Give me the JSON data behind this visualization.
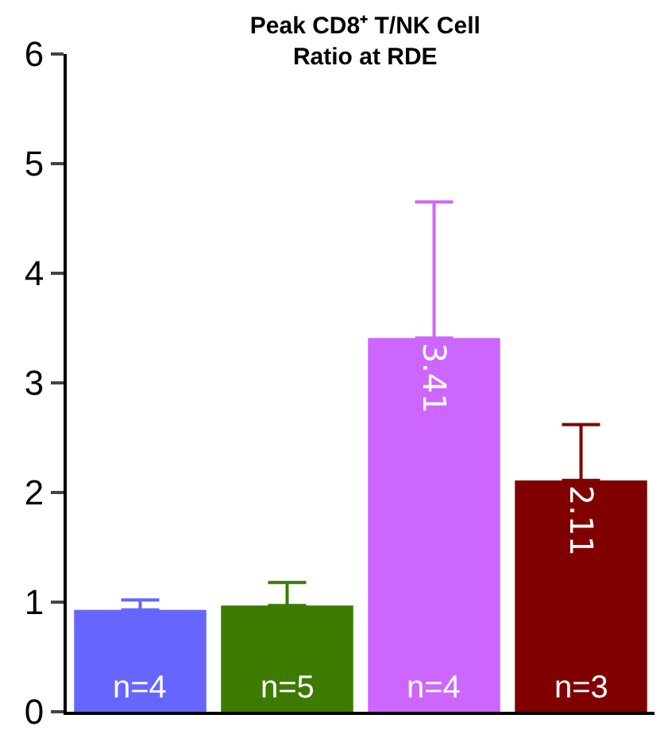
{
  "chart_data": {
    "type": "bar",
    "title": "Peak CD8⁺ T/NK Cell\nRatio at RDE",
    "categories": [
      null,
      null,
      null,
      null
    ],
    "values": [
      0.93,
      0.97,
      3.41,
      2.11
    ],
    "colors": [
      "#6666ff",
      "#3d7a00",
      "#cc66ff",
      "#800000"
    ],
    "errors": [
      [
        0.93,
        1.02
      ],
      [
        0.97,
        1.18
      ],
      [
        3.41,
        4.65
      ],
      [
        2.11,
        2.62
      ]
    ],
    "value_labels": [
      null,
      null,
      "3.41",
      "2.11"
    ],
    "annotations": [
      "n=4",
      "n=5",
      "n=4",
      "n=3"
    ],
    "ylim": [
      0,
      6
    ],
    "yticks": [
      0,
      1,
      2,
      3,
      4,
      5,
      6
    ],
    "grid": false
  }
}
